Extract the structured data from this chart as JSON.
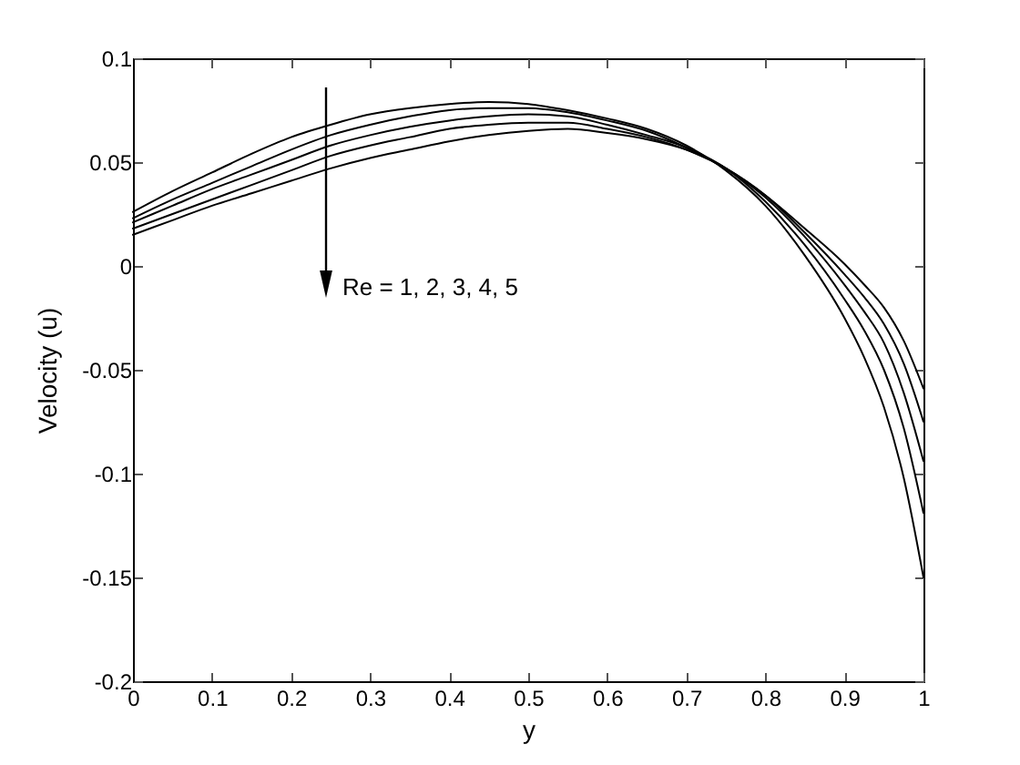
{
  "chart_data": {
    "type": "line",
    "xlabel": "y",
    "ylabel": "Velocity (u)",
    "x": [
      0,
      0.05,
      0.1,
      0.15,
      0.2,
      0.25,
      0.3,
      0.35,
      0.4,
      0.45,
      0.5,
      0.55,
      0.6,
      0.65,
      0.7,
      0.75,
      0.8,
      0.85,
      0.9,
      0.925,
      0.95,
      0.975,
      1
    ],
    "series": [
      {
        "color": "#000000",
        "values": [
          0.026,
          0.036,
          0.045,
          0.054,
          0.062,
          0.068,
          0.073,
          0.076,
          0.078,
          0.079,
          0.078,
          0.075,
          0.071,
          0.066,
          0.058,
          0.046,
          0.029,
          0.005,
          -0.025,
          -0.044,
          -0.068,
          -0.102,
          -0.15
        ]
      },
      {
        "color": "#000000",
        "values": [
          0.023,
          0.032,
          0.04,
          0.048,
          0.056,
          0.063,
          0.068,
          0.072,
          0.075,
          0.076,
          0.076,
          0.074,
          0.07,
          0.065,
          0.057,
          0.047,
          0.031,
          0.01,
          -0.016,
          -0.031,
          -0.05,
          -0.078,
          -0.119
        ]
      },
      {
        "color": "#000000",
        "values": [
          0.021,
          0.029,
          0.037,
          0.044,
          0.051,
          0.058,
          0.063,
          0.067,
          0.07,
          0.072,
          0.073,
          0.072,
          0.068,
          0.063,
          0.057,
          0.047,
          0.033,
          0.014,
          -0.009,
          -0.022,
          -0.037,
          -0.061,
          -0.094
        ]
      },
      {
        "color": "#000000",
        "values": [
          0.018,
          0.025,
          0.032,
          0.039,
          0.046,
          0.053,
          0.058,
          0.062,
          0.066,
          0.068,
          0.069,
          0.069,
          0.066,
          0.062,
          0.056,
          0.047,
          0.034,
          0.016,
          -0.004,
          -0.015,
          -0.028,
          -0.047,
          -0.075
        ]
      },
      {
        "color": "#000000",
        "values": [
          0.015,
          0.022,
          0.029,
          0.035,
          0.041,
          0.047,
          0.052,
          0.056,
          0.06,
          0.063,
          0.065,
          0.066,
          0.064,
          0.061,
          0.056,
          0.047,
          0.034,
          0.018,
          0.001,
          -0.009,
          -0.02,
          -0.036,
          -0.059
        ]
      }
    ],
    "xlim": [
      0,
      1
    ],
    "xticks": [
      0,
      0.1,
      0.2,
      0.3,
      0.4,
      0.5,
      0.6,
      0.7,
      0.8,
      0.9,
      1
    ],
    "ylim": [
      -0.2,
      0.1
    ],
    "yticks": [
      -0.2,
      -0.15,
      -0.1,
      -0.05,
      0,
      0.05,
      0.1
    ],
    "grid": false,
    "line_style": "solid",
    "annotations": [
      "Re = 1, 2, 3, 4, 5"
    ]
  }
}
